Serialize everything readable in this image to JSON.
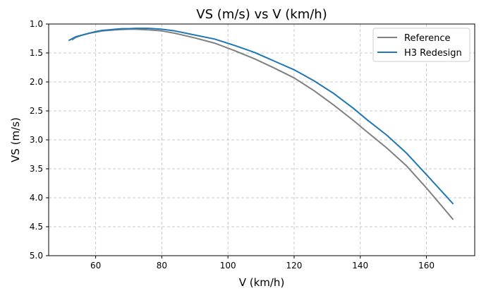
{
  "chart_data": {
    "type": "line",
    "title": "VS (m/s) vs V (km/h)",
    "xlabel": "V (km/h)",
    "ylabel": "VS (m/s)",
    "xlim": [
      45.8,
      174.6
    ],
    "ylim": [
      5.0,
      1.0
    ],
    "y_inverted": true,
    "xticks": [
      60,
      80,
      100,
      120,
      140,
      160
    ],
    "yticks": [
      1.0,
      1.5,
      2.0,
      2.5,
      3.0,
      3.5,
      4.0,
      4.5,
      5.0
    ],
    "grid": true,
    "legend_position": "top-right",
    "series": [
      {
        "name": "Reference",
        "color": "#808080",
        "x": [
          53,
          54,
          56,
          58,
          60,
          62,
          64,
          66,
          68,
          70,
          72,
          76,
          80,
          84,
          90,
          96,
          102,
          108,
          114,
          120,
          126,
          132,
          138,
          142,
          148,
          154,
          160,
          168
        ],
        "y": [
          1.27,
          1.23,
          1.19,
          1.16,
          1.14,
          1.12,
          1.11,
          1.1,
          1.095,
          1.09,
          1.09,
          1.1,
          1.12,
          1.16,
          1.24,
          1.33,
          1.46,
          1.6,
          1.76,
          1.93,
          2.15,
          2.4,
          2.67,
          2.86,
          3.14,
          3.45,
          3.83,
          4.37
        ]
      },
      {
        "name": "H3 Redesign",
        "color": "#1f77b4",
        "x": [
          52,
          53,
          54,
          56,
          58,
          60,
          62,
          64,
          66,
          68,
          70,
          72,
          76,
          80,
          84,
          90,
          96,
          102,
          108,
          114,
          120,
          126,
          132,
          138,
          142,
          148,
          154,
          160,
          168
        ],
        "y": [
          1.28,
          1.25,
          1.22,
          1.19,
          1.16,
          1.13,
          1.11,
          1.1,
          1.09,
          1.08,
          1.08,
          1.075,
          1.075,
          1.09,
          1.12,
          1.19,
          1.26,
          1.37,
          1.49,
          1.64,
          1.79,
          1.98,
          2.2,
          2.46,
          2.65,
          2.92,
          3.23,
          3.6,
          4.1
        ]
      }
    ]
  }
}
